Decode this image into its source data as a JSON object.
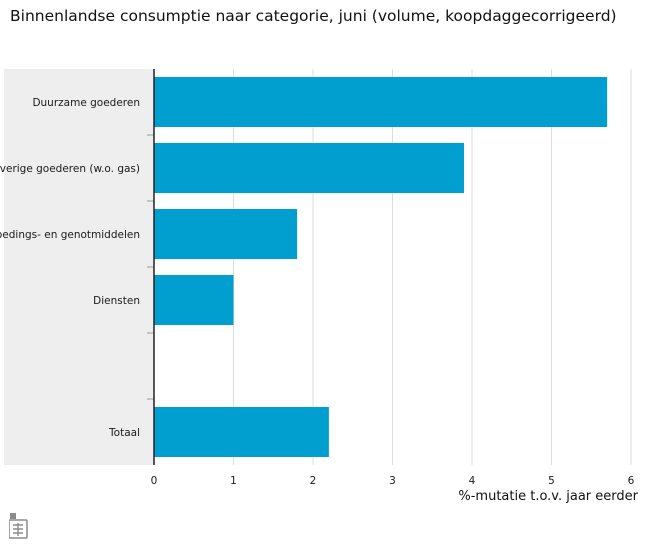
{
  "title": "Binnenlandse consumptie naar categorie, juni (volume, koopdaggecorrigeerd)",
  "chart_data": {
    "type": "bar",
    "orientation": "horizontal",
    "categories": [
      "Duurzame goederen",
      "Overige goederen (w.o. gas)",
      "Voedings- en genotmiddelen",
      "Diensten",
      "",
      "Totaal"
    ],
    "values": [
      5.7,
      3.9,
      1.8,
      1.0,
      null,
      2.2
    ],
    "xlabel": "%-mutatie t.o.v. jaar eerder",
    "ylabel": "",
    "xlim": [
      0,
      6
    ],
    "xticks": [
      0,
      1,
      2,
      3,
      4,
      5,
      6
    ],
    "grid": true,
    "legend": "none",
    "bar_color": "#009fcf"
  },
  "colors": {
    "bar": "#009fcf",
    "label_panel": "#eeeeee",
    "grid": "#dcdcdc",
    "axis": "#222222"
  },
  "logo": {
    "icon": "cbs-logo-icon"
  }
}
